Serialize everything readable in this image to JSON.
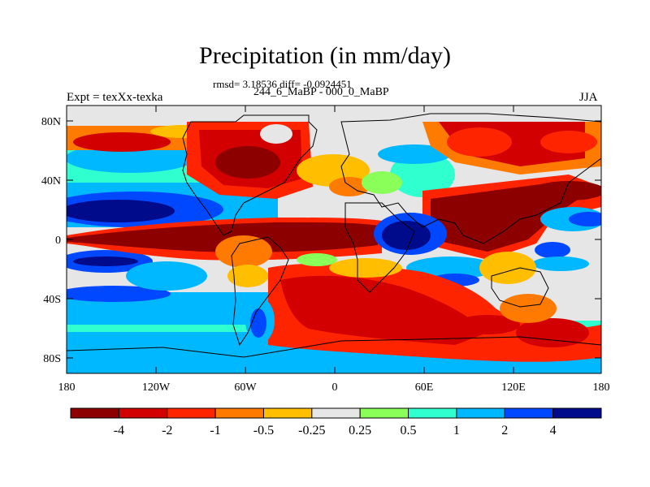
{
  "title": "Precipitation (in mm/day)",
  "stats_line": "rmsd= 3.18536 diff= -0.0924451",
  "period_line": "244_6_MaBP - 000_0_MaBP",
  "experiment_label": "Expt = texXx-texka",
  "season": "JJA",
  "map": {
    "x_ticks": [
      "180",
      "120W",
      "60W",
      "0",
      "60E",
      "120E",
      "180"
    ],
    "y_ticks": [
      "80N",
      "40N",
      "0",
      "40S",
      "80S"
    ]
  },
  "colorbar": {
    "colors": [
      "#8c0000",
      "#d20000",
      "#ff2400",
      "#ff7a00",
      "#ffbe00",
      "#e6e6e6",
      "#8aff5a",
      "#30ffd0",
      "#00b8ff",
      "#0048ff",
      "#000b8c"
    ],
    "labels": [
      "-4",
      "-2",
      "-1",
      "-0.5",
      "-0.25",
      "0.25",
      "0.5",
      "1",
      "2",
      "4"
    ]
  }
}
